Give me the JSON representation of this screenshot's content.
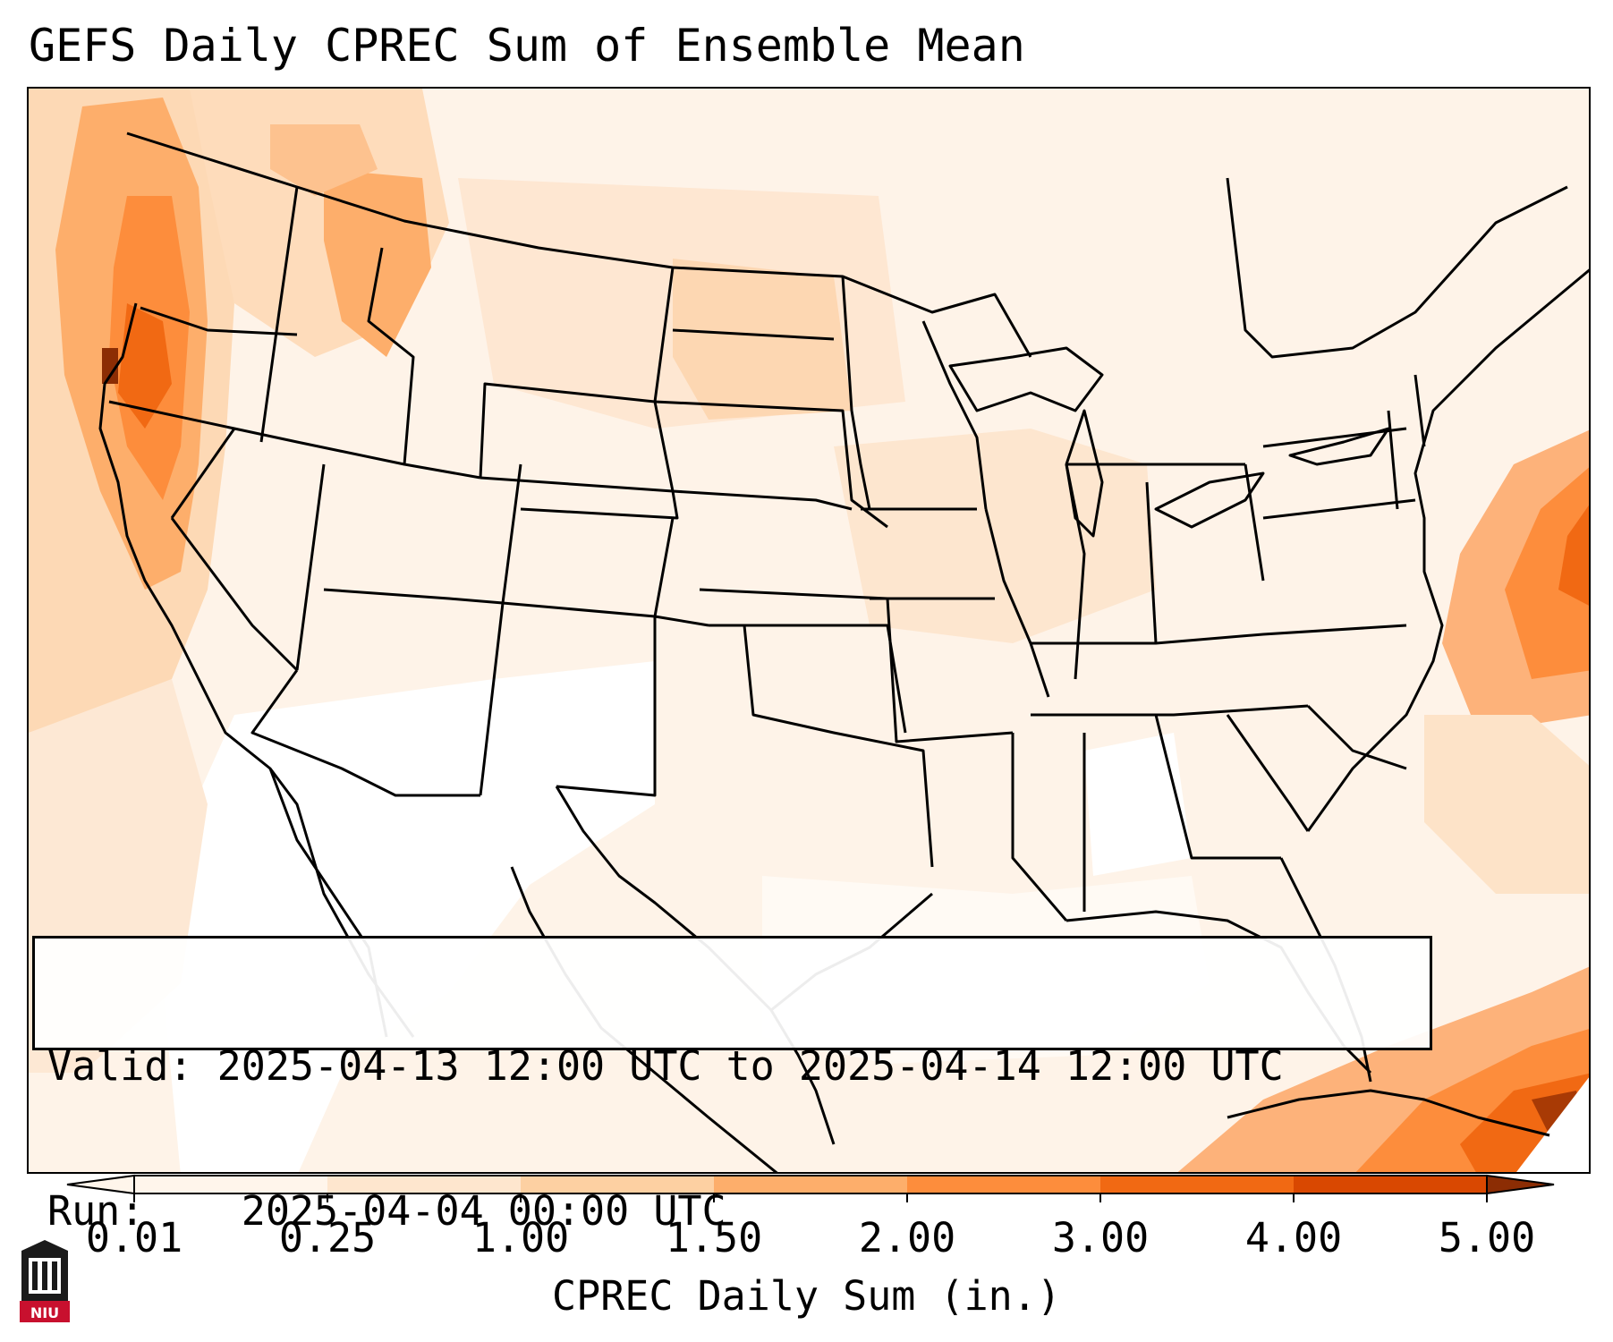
{
  "title": "GEFS Daily CPREC Sum of Ensemble Mean",
  "info": {
    "valid_label": "Valid:",
    "valid_value": "2025-04-13 12:00 UTC to 2025-04-14 12:00 UTC",
    "run_label": "Run:",
    "run_value": "2025-04-04 00:00 UTC"
  },
  "colorbar": {
    "label": "CPREC Daily Sum (in.)",
    "ticks": [
      "0.01",
      "0.25",
      "1.00",
      "1.50",
      "2.00",
      "3.00",
      "4.00",
      "5.00"
    ],
    "colors": [
      "#fff5eb",
      "#fee6ce",
      "#fdd0a2",
      "#fdae6b",
      "#fd8d3c",
      "#f16913",
      "#d94801",
      "#8c2d04"
    ],
    "extend": "both"
  },
  "logo": {
    "text": "NIU",
    "accent": "#c8102e"
  },
  "map": {
    "projection": "lambert-conformal-conus",
    "colormap": "Oranges",
    "features": [
      "coastlines",
      "state borders",
      "country borders"
    ],
    "heavy_areas": [
      "Pacific Northwest coast",
      "Idaho panhandle",
      "Atlantic off Carolinas",
      "Cuba / Bahamas"
    ]
  }
}
